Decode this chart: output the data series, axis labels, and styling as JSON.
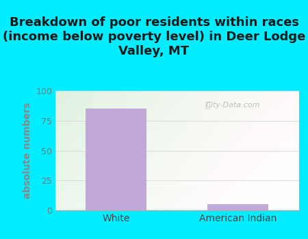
{
  "title": "Breakdown of poor residents within races\n(income below poverty level) in Deer Lodge\nValley, MT",
  "categories": [
    "White",
    "American Indian"
  ],
  "values": [
    85,
    5
  ],
  "bar_color": "#c0a8d8",
  "ylabel": "absolute numbers",
  "ylim": [
    0,
    100
  ],
  "yticks": [
    0,
    25,
    50,
    75,
    100
  ],
  "bg_outer_color": "#00eeff",
  "watermark": "City-Data.com",
  "title_fontsize": 13,
  "bar_width": 0.5,
  "ylabel_color": "#888888",
  "tick_color": "#777777",
  "grid_color": "#dddddd",
  "plot_bg_left": "#c8e8c0",
  "plot_bg_right": "#f0f8ee"
}
